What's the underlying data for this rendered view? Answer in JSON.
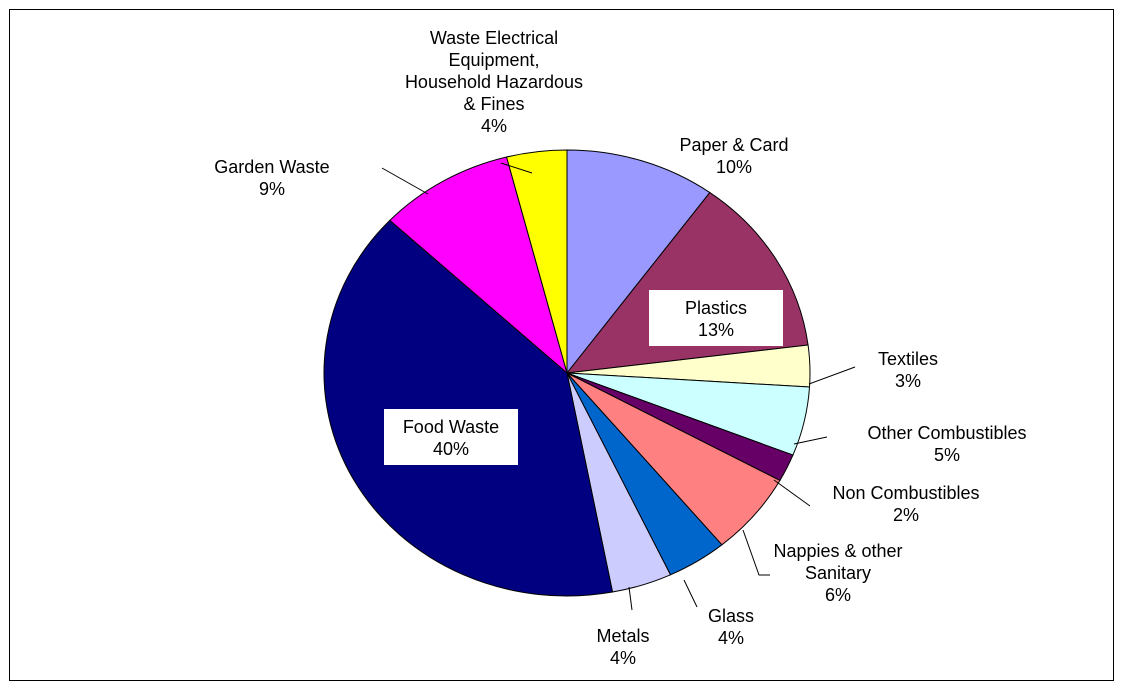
{
  "chart_data": {
    "type": "pie",
    "slices": [
      {
        "label": [
          "Paper & Card"
        ],
        "pct_text": "10%",
        "value": 10,
        "color": "#9999ff"
      },
      {
        "label": [
          "Plastics"
        ],
        "pct_text": "13%",
        "value": 13,
        "color": "#993366"
      },
      {
        "label": [
          "Textiles"
        ],
        "pct_text": "3%",
        "value": 3,
        "color": "#ffffcc"
      },
      {
        "label": [
          "Other Combustibles"
        ],
        "pct_text": "5%",
        "value": 5,
        "color": "#ccffff"
      },
      {
        "label": [
          "Non Combustibles"
        ],
        "pct_text": "2%",
        "value": 2,
        "color": "#660066"
      },
      {
        "label": [
          "Nappies & other",
          "Sanitary"
        ],
        "pct_text": "6%",
        "value": 6,
        "color": "#ff8080"
      },
      {
        "label": [
          "Glass"
        ],
        "pct_text": "4%",
        "value": 4,
        "color": "#0066cc"
      },
      {
        "label": [
          "Metals"
        ],
        "pct_text": "4%",
        "value": 4,
        "color": "#ccccff"
      },
      {
        "label": [
          "Food Waste"
        ],
        "pct_text": "40%",
        "value": 40,
        "color": "#000080"
      },
      {
        "label": [
          "Garden Waste"
        ],
        "pct_text": "9%",
        "value": 9,
        "color": "#ff00ff"
      },
      {
        "label": [
          "Waste Electrical",
          "Equipment,",
          "Household Hazardous",
          "& Fines"
        ],
        "pct_text": "4%",
        "value": 4,
        "color": "#ffff00"
      }
    ],
    "legend": "none",
    "start": "12 o'clock",
    "direction": "clockwise"
  }
}
